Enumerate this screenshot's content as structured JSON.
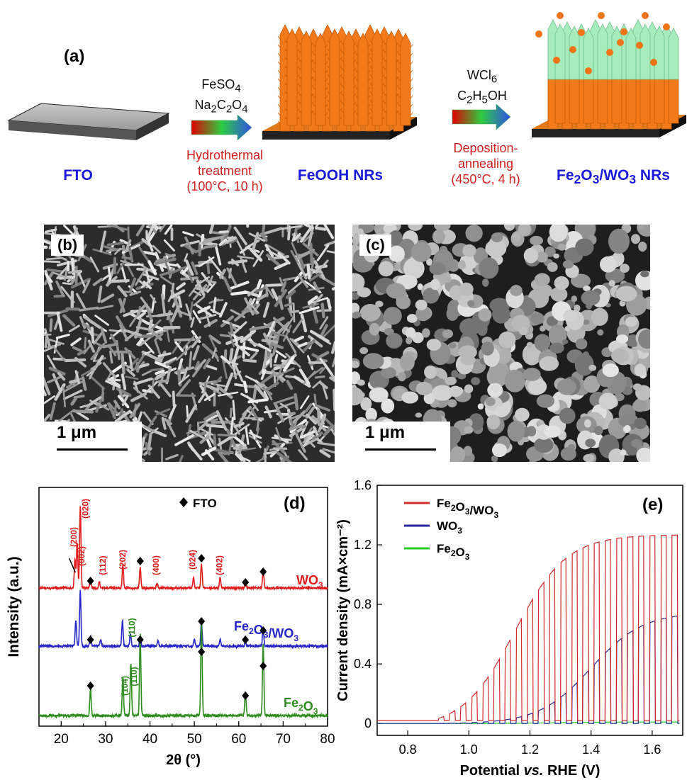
{
  "panel_a": {
    "label": "(a)",
    "step1": {
      "reagent1": "FeSO",
      "reagent1_sub": "4",
      "reagent2_parts": [
        "Na",
        "2",
        "C",
        "2",
        "O",
        "4"
      ],
      "process": [
        "Hydrothermal",
        "treatment",
        "(100°C, 10 h)"
      ]
    },
    "step2": {
      "reagent1": "WCl",
      "reagent1_sub": "6",
      "reagent2_parts": [
        "C",
        "2",
        "H",
        "5",
        "OH"
      ],
      "process": [
        "Deposition-",
        "annealing",
        "(450°C, 4 h)"
      ]
    },
    "stage_labels": {
      "fto": "FTO",
      "feooh": "FeOOH NRs",
      "final_parts": [
        "Fe",
        "2",
        "O",
        "3",
        "/WO",
        "3",
        " NRs"
      ]
    }
  },
  "panel_b": {
    "label": "(b)",
    "scale": "1 μm"
  },
  "panel_c": {
    "label": "(c)",
    "scale": "1 μm"
  },
  "chart_data": [
    {
      "type": "line",
      "panel": "(d)",
      "xlabel": "2θ (°)",
      "ylabel": "Intensity (a.u.)",
      "xlim": [
        15,
        80
      ],
      "xticks": [
        20,
        30,
        40,
        50,
        60,
        70,
        80
      ],
      "legend": "◆ FTO",
      "series": [
        {
          "name": "WO3",
          "color": "#e01b1b",
          "peaks": [
            [
              23.1,
              0.35
            ],
            [
              23.6,
              0.55
            ],
            [
              24.3,
              1.0
            ],
            [
              26.6,
              0.12
            ],
            [
              28.6,
              0.08
            ],
            [
              33.9,
              0.28
            ],
            [
              37.8,
              0.25
            ],
            [
              41.6,
              0.06
            ],
            [
              49.8,
              0.12
            ],
            [
              51.6,
              0.3
            ],
            [
              55.8,
              0.12
            ],
            [
              61.5,
              0.06
            ],
            [
              65.5,
              0.22
            ]
          ],
          "peak_labels": [
            "(200)",
            "(002)",
            "(020)",
            "(112)",
            "(202)",
            "(400)",
            "(024)",
            "(402)"
          ]
        },
        {
          "name": "Fe2O3/WO3",
          "color": "#2424c8",
          "peaks": [
            [
              23.3,
              0.3
            ],
            [
              24.3,
              0.65
            ],
            [
              26.6,
              0.12
            ],
            [
              28.9,
              0.07
            ],
            [
              33.8,
              0.3
            ],
            [
              35.6,
              0.15
            ],
            [
              37.8,
              0.1
            ],
            [
              41.8,
              0.07
            ],
            [
              50.0,
              0.08
            ],
            [
              51.6,
              0.3
            ],
            [
              55.8,
              0.08
            ],
            [
              61.5,
              0.05
            ],
            [
              65.5,
              0.2
            ]
          ],
          "peak_labels": [
            "(110)"
          ]
        },
        {
          "name": "Fe2O3",
          "color": "#2e8b1e",
          "peaks": [
            [
              26.6,
              0.28
            ],
            [
              33.9,
              0.4
            ],
            [
              35.7,
              0.55
            ],
            [
              37.8,
              0.85
            ],
            [
              51.6,
              1.0
            ],
            [
              61.5,
              0.25
            ],
            [
              65.5,
              0.75
            ]
          ],
          "peak_labels": [
            "(104)",
            "(110)"
          ]
        }
      ]
    },
    {
      "type": "line",
      "panel": "(e)",
      "xlabel": "Potential vs. RHE (V)",
      "ylabel": "Current density (mA×cm⁻²)",
      "xlim": [
        0.7,
        1.7
      ],
      "ylim": [
        -0.08,
        1.6
      ],
      "xticks": [
        "0.8",
        "1.0",
        "1.2",
        "1.4",
        "1.6"
      ],
      "yticks": [
        "0",
        "0.4",
        "0.8",
        "1.2",
        "1.6"
      ],
      "legend": "top-left",
      "series": [
        {
          "name": "Fe2O3/WO3",
          "color": "#d12a2a",
          "plateau": 1.3,
          "onset": 0.88,
          "mid": 1.15,
          "dark": 0.02
        },
        {
          "name": "WO3",
          "color": "#26269e",
          "plateau": 0.75,
          "onset": 0.9,
          "mid": 1.4,
          "dark": 0.0
        },
        {
          "name": "Fe2O3",
          "color": "#22cc22",
          "plateau": 0.01,
          "onset": 0.9,
          "mid": 1.3,
          "dark": 0.0
        }
      ]
    }
  ]
}
